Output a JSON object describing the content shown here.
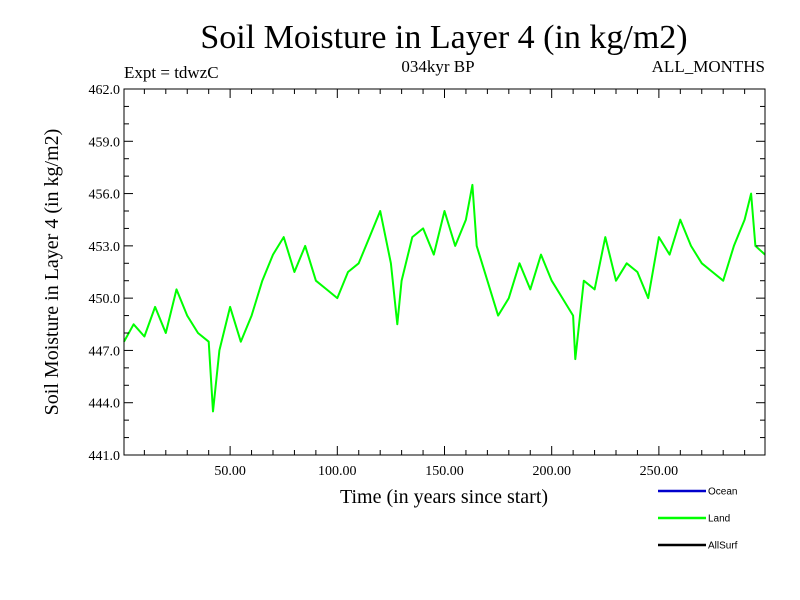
{
  "chart_data": {
    "type": "line",
    "title": "Soil Moisture in Layer 4 (in kg/m2)",
    "subtitle_left": "Expt = tdwzC",
    "subtitle_center": "034kyr BP",
    "subtitle_right": "ALL_MONTHS",
    "xlabel": "Time (in years since start)",
    "ylabel": "Soil Moisture in Layer 4 (in kg/m2)",
    "xlim": [
      0.5,
      299.5
    ],
    "ylim": [
      441.0,
      462.0
    ],
    "x_ticks": [
      50,
      100,
      150,
      200,
      250
    ],
    "x_tick_labels": [
      "50.00",
      "100.00",
      "150.00",
      "200.00",
      "250.00"
    ],
    "y_ticks": [
      441,
      444,
      447,
      450,
      453,
      456,
      459,
      462
    ],
    "y_tick_labels": [
      "441.0",
      "444.0",
      "447.0",
      "450.0",
      "453.0",
      "456.0",
      "459.0",
      "462.0"
    ],
    "legend": {
      "placement": "bottom-right",
      "entries": [
        {
          "label": "Ocean",
          "color": "#0000cc"
        },
        {
          "label": "Land",
          "color": "#00ff00"
        },
        {
          "label": "AllSurf",
          "color": "#000000"
        }
      ]
    },
    "series": [
      {
        "name": "Land",
        "color": "#00ff00",
        "x": [
          0.5,
          5,
          10,
          15,
          20,
          25,
          30,
          35,
          40,
          42,
          45,
          50,
          55,
          60,
          65,
          70,
          75,
          80,
          85,
          90,
          95,
          100,
          105,
          110,
          115,
          120,
          125,
          128,
          130,
          135,
          140,
          145,
          150,
          155,
          160,
          163,
          165,
          170,
          175,
          180,
          185,
          190,
          195,
          200,
          205,
          210,
          211,
          215,
          220,
          225,
          230,
          235,
          240,
          245,
          250,
          255,
          260,
          265,
          270,
          275,
          280,
          285,
          290,
          293,
          295,
          299.5
        ],
        "y": [
          447.5,
          448.5,
          447.8,
          449.5,
          448.0,
          450.5,
          449.0,
          448.0,
          447.5,
          443.5,
          447.0,
          449.5,
          447.5,
          449.0,
          451.0,
          452.5,
          453.5,
          451.5,
          453.0,
          451.0,
          450.5,
          450.0,
          451.5,
          452.0,
          453.5,
          455.0,
          452.0,
          448.5,
          451.0,
          453.5,
          454.0,
          452.5,
          455.0,
          453.0,
          454.5,
          456.5,
          453.0,
          451.0,
          449.0,
          450.0,
          452.0,
          450.5,
          452.5,
          451.0,
          450.0,
          449.0,
          446.5,
          451.0,
          450.5,
          453.5,
          451.0,
          452.0,
          451.5,
          450.0,
          453.5,
          452.5,
          454.5,
          453.0,
          452.0,
          451.5,
          451.0,
          453.0,
          454.5,
          456.0,
          453.0,
          452.5
        ]
      }
    ]
  }
}
